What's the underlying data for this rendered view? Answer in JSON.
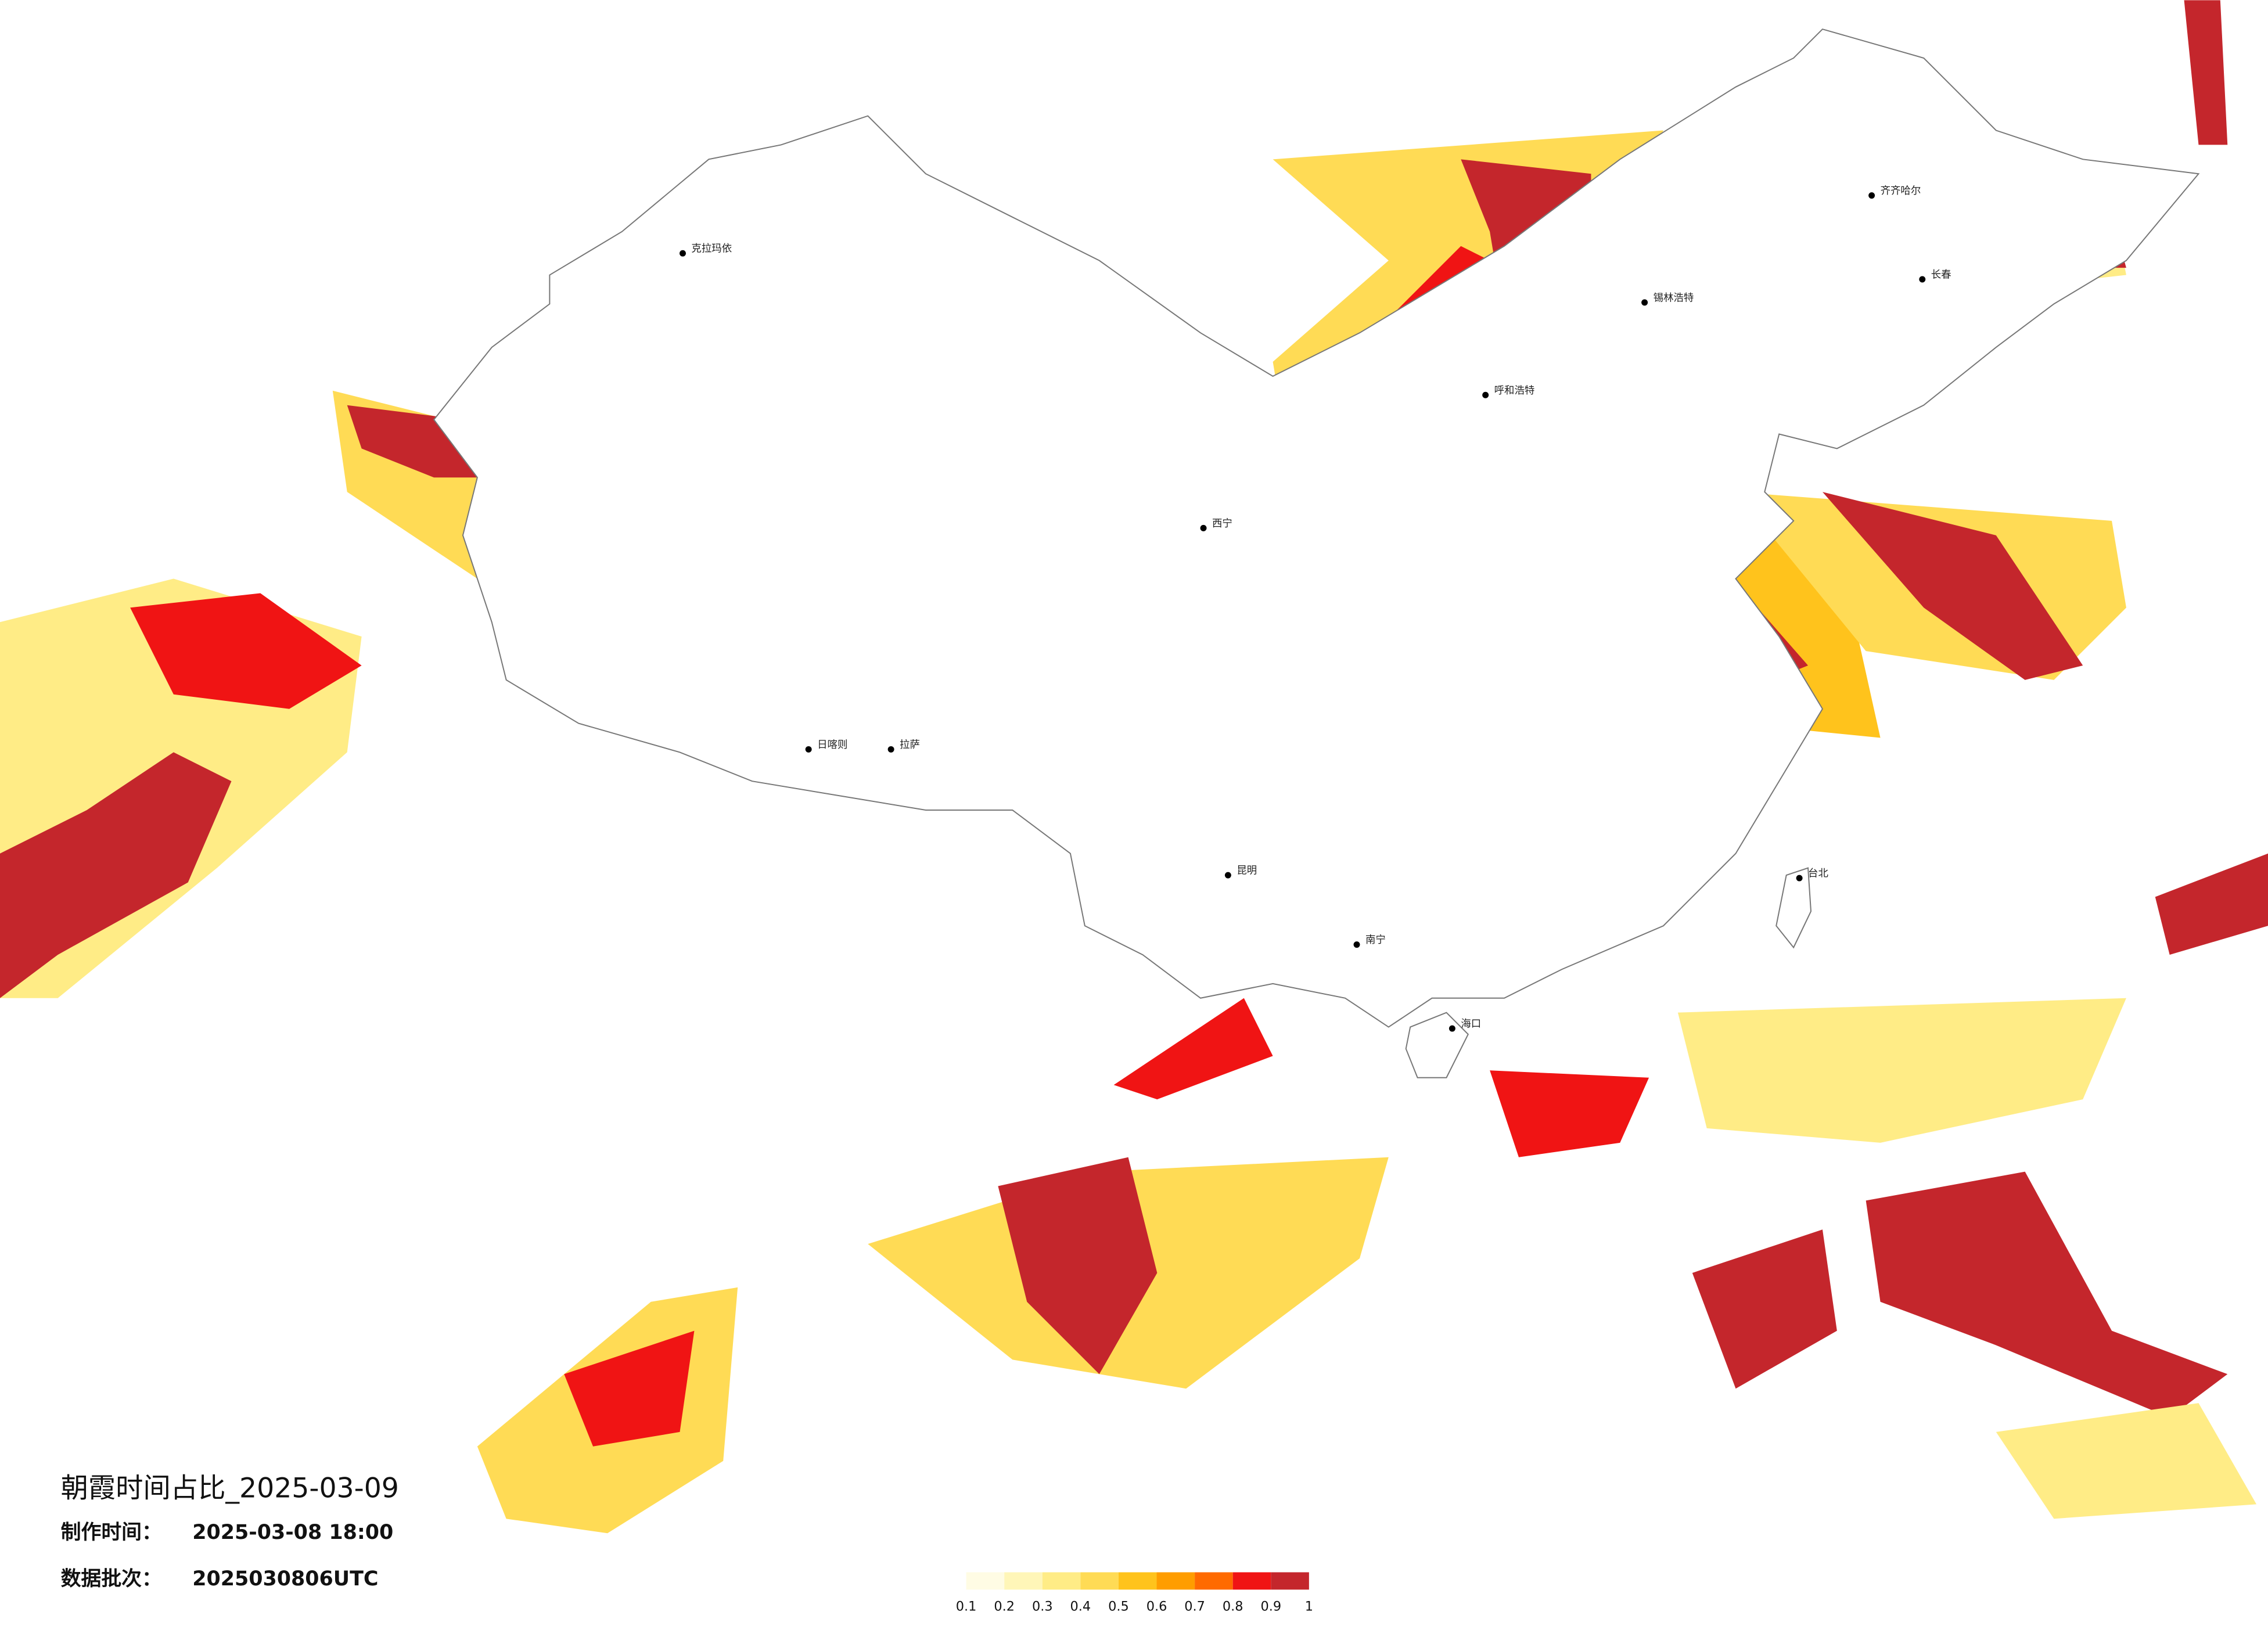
{
  "title": "朝霞时间占比_2025-03-09",
  "production_time": {
    "label": "制作时间：",
    "value": "2025-03-08 18:00"
  },
  "batch": {
    "label": "数据批次：",
    "value": "2025030806UTC"
  },
  "colorbar": {
    "ticks": [
      0.1,
      0.2,
      0.3,
      0.4,
      0.5,
      0.6,
      0.7,
      0.8,
      0.9,
      1
    ],
    "colors": [
      "#fffce4",
      "#fff6b8",
      "#ffec86",
      "#ffdb55",
      "#ffc31c",
      "#ff9d00",
      "#ff6a00",
      "#f01414",
      "#c4262c"
    ]
  },
  "cities": [
    "克拉玛依",
    "呼和浩特",
    "锡林浩特",
    "齐齐哈尔",
    "拉萨",
    "日喀则",
    "西宁",
    "昆明",
    "南宁",
    "海口",
    "台北",
    "长春"
  ]
}
